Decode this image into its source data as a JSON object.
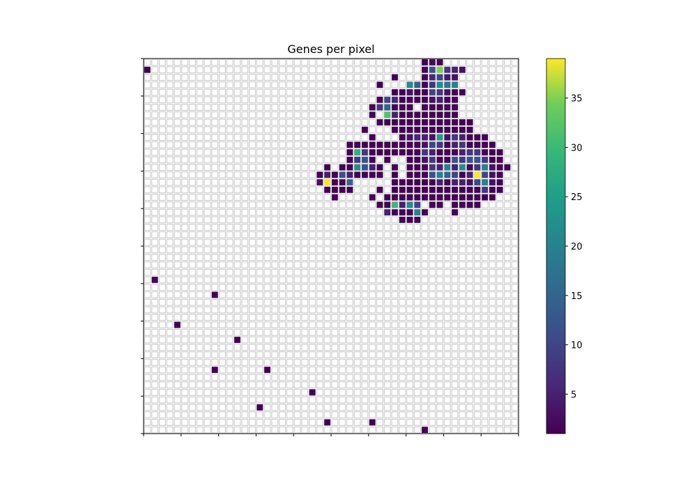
{
  "chart_data": {
    "type": "heatmap",
    "title": "Genes per pixel",
    "xlabel": "",
    "ylabel": "",
    "grid": true,
    "grid_size": 50,
    "colormap": "viridis",
    "vmin": 1,
    "vmax": 39,
    "colorbar": {
      "ticks": [
        5,
        10,
        15,
        20,
        25,
        30,
        35
      ],
      "tick_labels": [
        "5",
        "10",
        "15",
        "20",
        "25",
        "30",
        "35"
      ]
    },
    "cells": [
      [
        37,
        0,
        1
      ],
      [
        38,
        0,
        2
      ],
      [
        39,
        0,
        1
      ],
      [
        37,
        1,
        1
      ],
      [
        38,
        1,
        12
      ],
      [
        39,
        1,
        35
      ],
      [
        40,
        1,
        8
      ],
      [
        41,
        1,
        5
      ],
      [
        42,
        1,
        3
      ],
      [
        33,
        2,
        1
      ],
      [
        37,
        2,
        1
      ],
      [
        38,
        2,
        6
      ],
      [
        39,
        2,
        10
      ],
      [
        40,
        2,
        4
      ],
      [
        41,
        2,
        3
      ],
      [
        31,
        3,
        1
      ],
      [
        35,
        3,
        22
      ],
      [
        36,
        3,
        15
      ],
      [
        37,
        3,
        1
      ],
      [
        38,
        3,
        8
      ],
      [
        39,
        3,
        22
      ],
      [
        40,
        3,
        18
      ],
      [
        41,
        3,
        20
      ],
      [
        33,
        4,
        1
      ],
      [
        34,
        4,
        1
      ],
      [
        35,
        4,
        3
      ],
      [
        36,
        4,
        1
      ],
      [
        37,
        4,
        1
      ],
      [
        38,
        4,
        10
      ],
      [
        39,
        4,
        8
      ],
      [
        40,
        4,
        3
      ],
      [
        41,
        4,
        1
      ],
      [
        42,
        4,
        1
      ],
      [
        31,
        5,
        1
      ],
      [
        32,
        5,
        10
      ],
      [
        33,
        5,
        6
      ],
      [
        34,
        5,
        1
      ],
      [
        35,
        5,
        1
      ],
      [
        36,
        5,
        1
      ],
      [
        37,
        5,
        1
      ],
      [
        38,
        5,
        3
      ],
      [
        39,
        5,
        5
      ],
      [
        40,
        5,
        1
      ],
      [
        41,
        5,
        1
      ],
      [
        30,
        6,
        1
      ],
      [
        31,
        6,
        8
      ],
      [
        32,
        6,
        15
      ],
      [
        33,
        6,
        1
      ],
      [
        34,
        6,
        1
      ],
      [
        35,
        6,
        1
      ],
      [
        37,
        6,
        1
      ],
      [
        38,
        6,
        1
      ],
      [
        39,
        6,
        1
      ],
      [
        40,
        6,
        1
      ],
      [
        41,
        6,
        1
      ],
      [
        30,
        7,
        1
      ],
      [
        32,
        7,
        32
      ],
      [
        33,
        7,
        5
      ],
      [
        34,
        7,
        1
      ],
      [
        35,
        7,
        1
      ],
      [
        36,
        7,
        1
      ],
      [
        37,
        7,
        1
      ],
      [
        38,
        7,
        1
      ],
      [
        39,
        7,
        1
      ],
      [
        40,
        7,
        1
      ],
      [
        41,
        7,
        1
      ],
      [
        31,
        8,
        1
      ],
      [
        32,
        8,
        1
      ],
      [
        33,
        8,
        1
      ],
      [
        34,
        8,
        1
      ],
      [
        35,
        8,
        1
      ],
      [
        36,
        8,
        1
      ],
      [
        37,
        8,
        1
      ],
      [
        38,
        8,
        1
      ],
      [
        39,
        8,
        1
      ],
      [
        40,
        8,
        1
      ],
      [
        41,
        8,
        1
      ],
      [
        42,
        8,
        1
      ],
      [
        43,
        8,
        1
      ],
      [
        29,
        9,
        1
      ],
      [
        33,
        9,
        1
      ],
      [
        34,
        9,
        1
      ],
      [
        35,
        9,
        1
      ],
      [
        36,
        9,
        1
      ],
      [
        37,
        9,
        1
      ],
      [
        38,
        9,
        1
      ],
      [
        39,
        9,
        1
      ],
      [
        40,
        9,
        1
      ],
      [
        41,
        9,
        1
      ],
      [
        42,
        9,
        1
      ],
      [
        43,
        9,
        1
      ],
      [
        30,
        10,
        1
      ],
      [
        34,
        10,
        1
      ],
      [
        35,
        10,
        3
      ],
      [
        36,
        10,
        6
      ],
      [
        37,
        10,
        5
      ],
      [
        38,
        10,
        3
      ],
      [
        39,
        10,
        25
      ],
      [
        40,
        10,
        3
      ],
      [
        41,
        10,
        8
      ],
      [
        42,
        10,
        5
      ],
      [
        43,
        10,
        1
      ],
      [
        44,
        10,
        1
      ],
      [
        45,
        10,
        1
      ],
      [
        27,
        11,
        1
      ],
      [
        28,
        11,
        1
      ],
      [
        29,
        11,
        1
      ],
      [
        30,
        11,
        1
      ],
      [
        31,
        11,
        1
      ],
      [
        32,
        11,
        1
      ],
      [
        33,
        11,
        1
      ],
      [
        34,
        11,
        1
      ],
      [
        35,
        11,
        1
      ],
      [
        36,
        11,
        1
      ],
      [
        37,
        11,
        3
      ],
      [
        38,
        11,
        10
      ],
      [
        39,
        11,
        8
      ],
      [
        40,
        11,
        1
      ],
      [
        41,
        11,
        5
      ],
      [
        42,
        11,
        8
      ],
      [
        43,
        11,
        1
      ],
      [
        44,
        11,
        1
      ],
      [
        45,
        11,
        1
      ],
      [
        46,
        11,
        1
      ],
      [
        27,
        12,
        1
      ],
      [
        28,
        12,
        28
      ],
      [
        29,
        12,
        8
      ],
      [
        30,
        12,
        1
      ],
      [
        31,
        12,
        1
      ],
      [
        32,
        12,
        1
      ],
      [
        33,
        12,
        1
      ],
      [
        34,
        12,
        1
      ],
      [
        35,
        12,
        1
      ],
      [
        36,
        12,
        1
      ],
      [
        37,
        12,
        8
      ],
      [
        38,
        12,
        5
      ],
      [
        39,
        12,
        1
      ],
      [
        40,
        12,
        1
      ],
      [
        41,
        12,
        1
      ],
      [
        42,
        12,
        5
      ],
      [
        43,
        12,
        8
      ],
      [
        44,
        12,
        8
      ],
      [
        45,
        12,
        1
      ],
      [
        46,
        12,
        1
      ],
      [
        47,
        12,
        1
      ],
      [
        27,
        13,
        1
      ],
      [
        28,
        13,
        8
      ],
      [
        29,
        13,
        12
      ],
      [
        30,
        13,
        1
      ],
      [
        32,
        13,
        1
      ],
      [
        35,
        13,
        1
      ],
      [
        36,
        13,
        1
      ],
      [
        37,
        13,
        3
      ],
      [
        38,
        13,
        8
      ],
      [
        39,
        13,
        1
      ],
      [
        40,
        13,
        1
      ],
      [
        41,
        13,
        12
      ],
      [
        42,
        13,
        8
      ],
      [
        43,
        13,
        12
      ],
      [
        44,
        13,
        12
      ],
      [
        45,
        13,
        8
      ],
      [
        46,
        13,
        1
      ],
      [
        47,
        13,
        1
      ],
      [
        24,
        14,
        1
      ],
      [
        26,
        14,
        1
      ],
      [
        27,
        14,
        1
      ],
      [
        28,
        14,
        22
      ],
      [
        29,
        14,
        12
      ],
      [
        30,
        14,
        5
      ],
      [
        31,
        14,
        1
      ],
      [
        33,
        14,
        1
      ],
      [
        35,
        14,
        1
      ],
      [
        36,
        14,
        1
      ],
      [
        37,
        14,
        1
      ],
      [
        38,
        14,
        8
      ],
      [
        39,
        14,
        5
      ],
      [
        40,
        14,
        20
      ],
      [
        41,
        14,
        5
      ],
      [
        42,
        14,
        22
      ],
      [
        43,
        14,
        1
      ],
      [
        44,
        14,
        8
      ],
      [
        45,
        14,
        20
      ],
      [
        46,
        14,
        3
      ],
      [
        47,
        14,
        1
      ],
      [
        48,
        14,
        1
      ],
      [
        23,
        15,
        1
      ],
      [
        24,
        15,
        5
      ],
      [
        25,
        15,
        1
      ],
      [
        26,
        15,
        12
      ],
      [
        27,
        15,
        5
      ],
      [
        28,
        15,
        1
      ],
      [
        29,
        15,
        1
      ],
      [
        30,
        15,
        1
      ],
      [
        31,
        15,
        1
      ],
      [
        33,
        15,
        1
      ],
      [
        35,
        15,
        1
      ],
      [
        36,
        15,
        1
      ],
      [
        37,
        15,
        1
      ],
      [
        38,
        15,
        12
      ],
      [
        39,
        15,
        20
      ],
      [
        40,
        15,
        15
      ],
      [
        41,
        15,
        10
      ],
      [
        42,
        15,
        1
      ],
      [
        43,
        15,
        5
      ],
      [
        44,
        15,
        39
      ],
      [
        45,
        15,
        10
      ],
      [
        46,
        15,
        3
      ],
      [
        47,
        15,
        1
      ],
      [
        23,
        16,
        3
      ],
      [
        24,
        16,
        39
      ],
      [
        25,
        16,
        1
      ],
      [
        26,
        16,
        1
      ],
      [
        27,
        16,
        15
      ],
      [
        33,
        16,
        1
      ],
      [
        34,
        16,
        1
      ],
      [
        35,
        16,
        1
      ],
      [
        36,
        16,
        1
      ],
      [
        37,
        16,
        1
      ],
      [
        38,
        16,
        1
      ],
      [
        39,
        16,
        5
      ],
      [
        40,
        16,
        1
      ],
      [
        41,
        16,
        5
      ],
      [
        42,
        16,
        5
      ],
      [
        43,
        16,
        3
      ],
      [
        44,
        16,
        10
      ],
      [
        45,
        16,
        20
      ],
      [
        46,
        16,
        3
      ],
      [
        47,
        16,
        1
      ],
      [
        24,
        17,
        1
      ],
      [
        25,
        17,
        1
      ],
      [
        26,
        17,
        1
      ],
      [
        27,
        17,
        1
      ],
      [
        31,
        17,
        1
      ],
      [
        33,
        17,
        1
      ],
      [
        34,
        17,
        1
      ],
      [
        35,
        17,
        1
      ],
      [
        36,
        17,
        1
      ],
      [
        37,
        17,
        1
      ],
      [
        38,
        17,
        1
      ],
      [
        39,
        17,
        1
      ],
      [
        40,
        17,
        1
      ],
      [
        41,
        17,
        1
      ],
      [
        42,
        17,
        1
      ],
      [
        43,
        17,
        1
      ],
      [
        44,
        17,
        1
      ],
      [
        45,
        17,
        8
      ],
      [
        46,
        17,
        1
      ],
      [
        47,
        17,
        1
      ],
      [
        25,
        18,
        1
      ],
      [
        30,
        18,
        1
      ],
      [
        32,
        18,
        1
      ],
      [
        33,
        18,
        1
      ],
      [
        34,
        18,
        1
      ],
      [
        35,
        18,
        1
      ],
      [
        36,
        18,
        1
      ],
      [
        37,
        18,
        1
      ],
      [
        38,
        18,
        1
      ],
      [
        39,
        18,
        1
      ],
      [
        40,
        18,
        1
      ],
      [
        41,
        18,
        1
      ],
      [
        42,
        18,
        1
      ],
      [
        43,
        18,
        1
      ],
      [
        44,
        18,
        1
      ],
      [
        45,
        18,
        1
      ],
      [
        46,
        18,
        1
      ],
      [
        31,
        19,
        1
      ],
      [
        32,
        19,
        1
      ],
      [
        33,
        19,
        30
      ],
      [
        34,
        19,
        5
      ],
      [
        35,
        19,
        22
      ],
      [
        36,
        19,
        10
      ],
      [
        38,
        19,
        1
      ],
      [
        39,
        19,
        1
      ],
      [
        41,
        19,
        1
      ],
      [
        42,
        19,
        1
      ],
      [
        43,
        19,
        1
      ],
      [
        44,
        19,
        1
      ],
      [
        32,
        20,
        5
      ],
      [
        33,
        20,
        1
      ],
      [
        34,
        20,
        1
      ],
      [
        35,
        20,
        1
      ],
      [
        36,
        20,
        20
      ],
      [
        37,
        20,
        1
      ],
      [
        41,
        20,
        1
      ],
      [
        34,
        21,
        1
      ],
      [
        35,
        21,
        1
      ],
      [
        36,
        21,
        1
      ],
      [
        0,
        1,
        1
      ],
      [
        1,
        29,
        1
      ],
      [
        9,
        31,
        1
      ],
      [
        4,
        35,
        1
      ],
      [
        12,
        37,
        1
      ],
      [
        9,
        41,
        1
      ],
      [
        16,
        41,
        1
      ],
      [
        22,
        44,
        1
      ],
      [
        15,
        46,
        1
      ],
      [
        24,
        48,
        1
      ],
      [
        30,
        48,
        1
      ],
      [
        37,
        49,
        1
      ]
    ]
  }
}
